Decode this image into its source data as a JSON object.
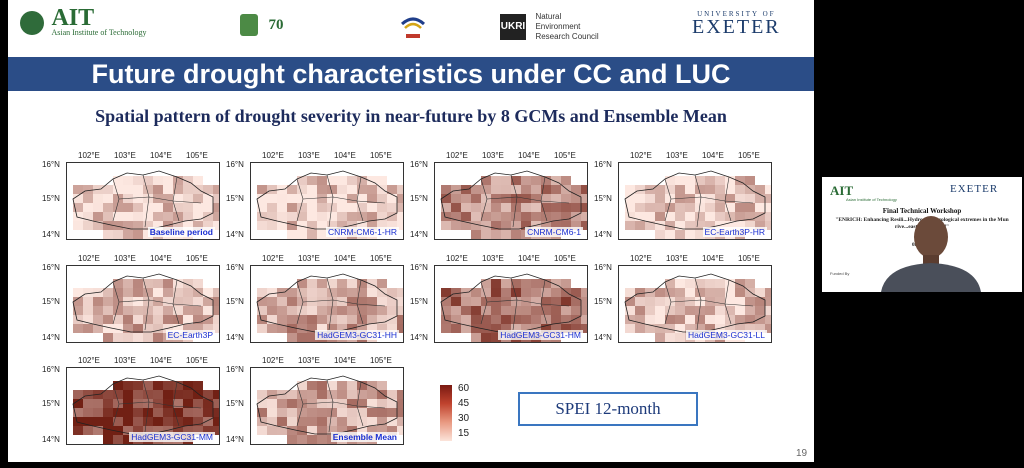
{
  "slide": {
    "logos": {
      "ait_name": "AIT",
      "ait_full": "Asian Institute of Technology",
      "logo2_text": "70",
      "ukri_text": "UKRI",
      "nerc_lines": [
        "Natural",
        "Environment",
        "Research Council"
      ],
      "exeter_top": "UNIVERSITY OF",
      "exeter_name": "EXETER"
    },
    "title": "Future drought characteristics under CC and LUC",
    "subtitle": "Spatial pattern of drought severity in near-future by 8 GCMs and Ensemble Mean",
    "longitude_labels": [
      "102°E",
      "103°E",
      "104°E",
      "105°E"
    ],
    "latitude_labels": [
      "16°N",
      "15°N",
      "14°N"
    ],
    "maps": [
      {
        "label": "Baseline period",
        "bold": true,
        "intensity": 0.12
      },
      {
        "label": "CNRM-CM6-1-HR",
        "bold": false,
        "intensity": 0.1
      },
      {
        "label": "CNRM-CM6-1",
        "bold": false,
        "intensity": 0.45
      },
      {
        "label": "EC-Earth3P-HR",
        "bold": false,
        "intensity": 0.13
      },
      {
        "label": "EC-Earth3P",
        "bold": false,
        "intensity": 0.25
      },
      {
        "label": "HadGEM3-GC31-HH",
        "bold": false,
        "intensity": 0.3
      },
      {
        "label": "HadGEM3-GC31-HM",
        "bold": false,
        "intensity": 0.55
      },
      {
        "label": "HadGEM3-GC31-LL",
        "bold": false,
        "intensity": 0.18
      },
      {
        "label": "HadGEM3-GC31-MM",
        "bold": false,
        "intensity": 0.8
      },
      {
        "label": "Ensemble Mean",
        "bold": true,
        "intensity": 0.3
      }
    ],
    "legend_ticks": [
      "60",
      "45",
      "30",
      "15"
    ],
    "spei_label": "SPEI 12-month",
    "page_number": "19"
  },
  "video": {
    "ait_name": "AIT",
    "ait_full": "Asian Institute of Technology",
    "exeter_name": "EXETER",
    "workshop_title": "Final Technical Workshop",
    "project_text": "\"ENRICH: Enhancing Resili...Hydro-meteorological extremes in the Mun rive...east of Thailand\"",
    "date_text": "08 Se",
    "funded_by": "Funded By"
  }
}
